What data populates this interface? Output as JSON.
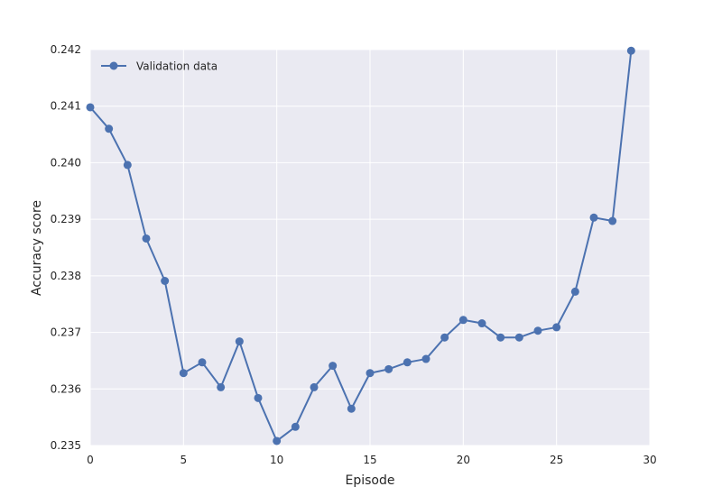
{
  "chart_data": {
    "type": "line",
    "title": "",
    "xlabel": "Episode",
    "ylabel": "Accuracy score",
    "xlim": [
      0,
      30
    ],
    "ylim": [
      0.235,
      0.242
    ],
    "x_ticks": [
      "0",
      "5",
      "10",
      "15",
      "20",
      "25",
      "30"
    ],
    "y_ticks": [
      "0.235",
      "0.236",
      "0.237",
      "0.238",
      "0.239",
      "0.240",
      "0.241",
      "0.242"
    ],
    "grid": true,
    "legend_position": "top-left",
    "colors": {
      "series": "#4c72b0",
      "plot_background": "#eaeaf2",
      "grid": "#ffffff"
    },
    "series": [
      {
        "name": "Validation data",
        "x": [
          0,
          1,
          2,
          3,
          4,
          5,
          6,
          7,
          8,
          9,
          10,
          11,
          12,
          13,
          14,
          15,
          16,
          17,
          18,
          19,
          20,
          21,
          22,
          23,
          24,
          25,
          26,
          27,
          28,
          29
        ],
        "values": [
          0.24098,
          0.2406,
          0.23996,
          0.23866,
          0.23791,
          0.23628,
          0.23647,
          0.23603,
          0.23684,
          0.23584,
          0.23508,
          0.23533,
          0.23603,
          0.23641,
          0.23565,
          0.23628,
          0.23635,
          0.23647,
          0.23653,
          0.23691,
          0.23722,
          0.23716,
          0.23691,
          0.23691,
          0.23703,
          0.23709,
          0.23772,
          0.23903,
          0.23897,
          0.24198
        ]
      }
    ]
  }
}
